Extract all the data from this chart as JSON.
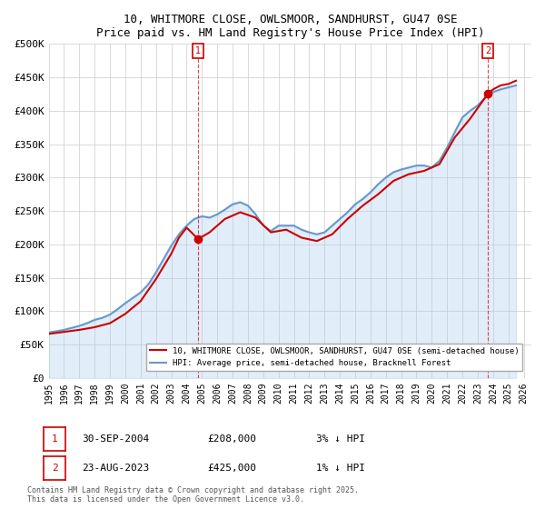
{
  "title": "10, WHITMORE CLOSE, OWLSMOOR, SANDHURST, GU47 0SE",
  "subtitle": "Price paid vs. HM Land Registry's House Price Index (HPI)",
  "ylabel": "",
  "ylim": [
    0,
    500000
  ],
  "yticks": [
    0,
    50000,
    100000,
    150000,
    200000,
    250000,
    300000,
    350000,
    400000,
    450000,
    500000
  ],
  "ytick_labels": [
    "£0",
    "£50K",
    "£100K",
    "£150K",
    "£200K",
    "£250K",
    "£300K",
    "£350K",
    "£400K",
    "£450K",
    "£500K"
  ],
  "xlim_start": 1995.0,
  "xlim_end": 2026.5,
  "xticks": [
    1995,
    1996,
    1997,
    1998,
    1999,
    2000,
    2001,
    2002,
    2003,
    2004,
    2005,
    2006,
    2007,
    2008,
    2009,
    2010,
    2011,
    2012,
    2013,
    2014,
    2015,
    2016,
    2017,
    2018,
    2019,
    2020,
    2021,
    2022,
    2023,
    2024,
    2025,
    2026
  ],
  "price_paid_color": "#cc0000",
  "hpi_color": "#6699cc",
  "hpi_fill_color": "#aaccee",
  "marker1_color": "#cc0000",
  "marker2_color": "#cc0000",
  "annotation1": {
    "label": "1",
    "date": 2004.75,
    "value": 208000
  },
  "annotation2": {
    "label": "2",
    "date": 2023.65,
    "value": 425000
  },
  "legend_line1": "10, WHITMORE CLOSE, OWLSMOOR, SANDHURST, GU47 0SE (semi-detached house)",
  "legend_line2": "HPI: Average price, semi-detached house, Bracknell Forest",
  "info1_label": "1",
  "info1_date": "30-SEP-2004",
  "info1_price": "£208,000",
  "info1_hpi": "3% ↓ HPI",
  "info2_label": "2",
  "info2_date": "23-AUG-2023",
  "info2_price": "£425,000",
  "info2_hpi": "1% ↓ HPI",
  "footer": "Contains HM Land Registry data © Crown copyright and database right 2025.\nThis data is licensed under the Open Government Licence v3.0.",
  "background_color": "#ffffff",
  "grid_color": "#cccccc"
}
